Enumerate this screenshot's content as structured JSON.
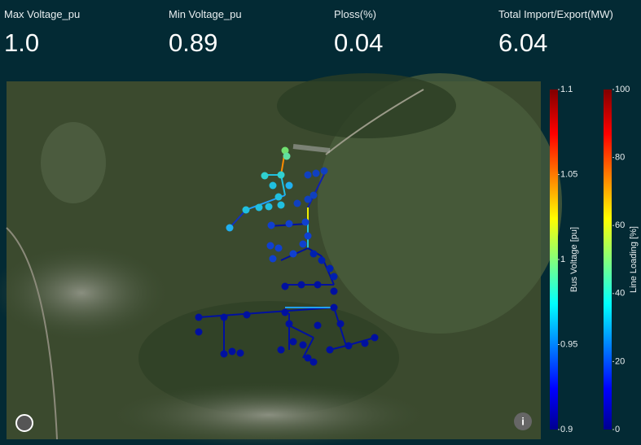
{
  "kpis": [
    {
      "label": "Max Voltage_pu",
      "value": "1.0"
    },
    {
      "label": "Min Voltage_pu",
      "value": "0.89"
    },
    {
      "label": "Ploss(%)",
      "value": "0.04"
    },
    {
      "label": "Total Import/Export(MW)",
      "value": "6.04"
    }
  ],
  "colorbars": [
    {
      "title": "Bus Voltage [pu]",
      "lim": [
        0.9,
        1.1
      ],
      "ticks": [
        0.9,
        0.95,
        1,
        1.05,
        1.1
      ]
    },
    {
      "title": "Line Loading [%]",
      "lim": [
        0,
        100
      ],
      "ticks": [
        0,
        20,
        40,
        60,
        80,
        100
      ]
    }
  ]
}
